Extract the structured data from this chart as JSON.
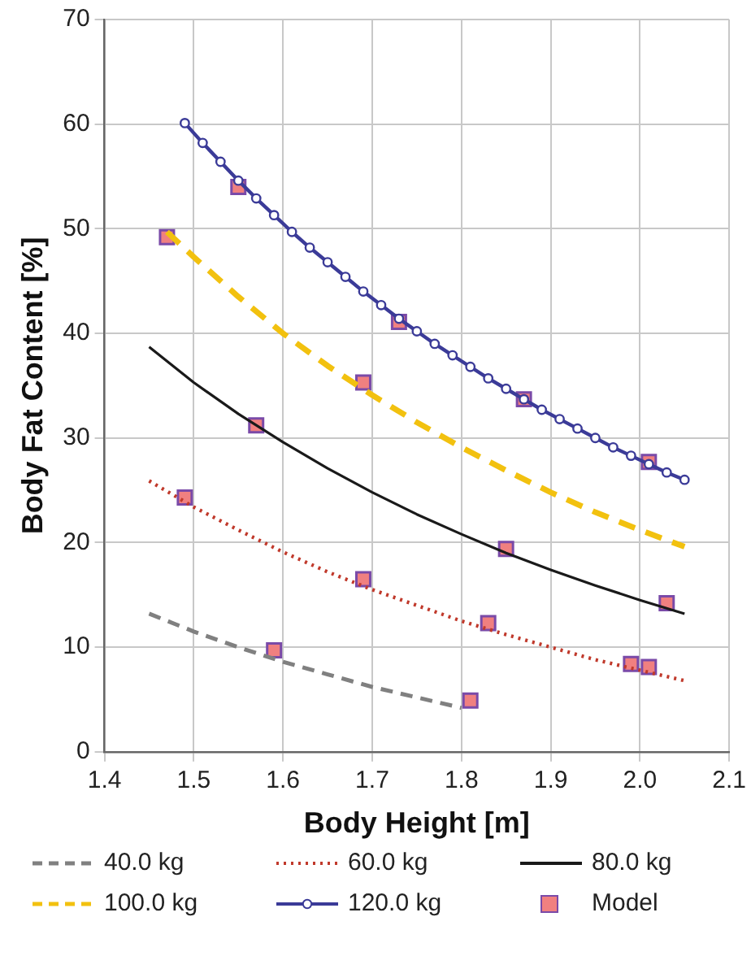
{
  "chart_data": {
    "type": "line",
    "xlabel": "Body Height [m]",
    "ylabel": "Body Fat Content [%]",
    "xlim": [
      1.4,
      2.1
    ],
    "xticks": [
      {
        "value": 1.4,
        "label": "1.4"
      },
      {
        "value": 1.5,
        "label": "1.5"
      },
      {
        "value": 1.6,
        "label": "1.6"
      },
      {
        "value": 1.7,
        "label": "1.7"
      },
      {
        "value": 1.8,
        "label": "1.8"
      },
      {
        "value": 1.9,
        "label": "1.9"
      },
      {
        "value": 2.0,
        "label": "2.0"
      },
      {
        "value": 2.1,
        "label": "2.1"
      }
    ],
    "ylim": [
      0,
      70
    ],
    "yticks": [
      0,
      10,
      20,
      30,
      40,
      50,
      60,
      70
    ],
    "grid": true,
    "legend": "bottom",
    "series": [
      {
        "name": "40.0 kg",
        "color": "#808080",
        "line_style": "dashed",
        "marker": "none",
        "x": [
          1.45,
          1.5,
          1.55,
          1.6,
          1.65,
          1.7,
          1.75,
          1.8
        ],
        "values": [
          13.2,
          11.5,
          10.0,
          8.6,
          7.4,
          6.2,
          5.2,
          4.2
        ]
      },
      {
        "name": "60.0 kg",
        "color": "#c0392b",
        "line_style": "dotted",
        "marker": "none",
        "x": [
          1.45,
          1.5,
          1.55,
          1.6,
          1.65,
          1.7,
          1.75,
          1.8,
          1.85,
          1.9,
          1.95,
          2.0,
          2.05
        ],
        "values": [
          25.9,
          23.4,
          21.2,
          19.1,
          17.2,
          15.5,
          14.0,
          12.5,
          11.2,
          10.0,
          8.8,
          7.8,
          6.8
        ]
      },
      {
        "name": "80.0 kg",
        "color": "#1a1a1a",
        "line_style": "solid",
        "marker": "none",
        "x": [
          1.45,
          1.5,
          1.55,
          1.6,
          1.65,
          1.7,
          1.75,
          1.8,
          1.85,
          1.9,
          1.95,
          2.0,
          2.05
        ],
        "values": [
          38.7,
          35.3,
          32.3,
          29.6,
          27.1,
          24.8,
          22.7,
          20.8,
          19.0,
          17.4,
          15.9,
          14.5,
          13.2
        ]
      },
      {
        "name": "100.0 kg",
        "color": "#f2c10f",
        "line_style": "dashed",
        "marker": "none",
        "x": [
          1.47,
          1.5,
          1.55,
          1.6,
          1.65,
          1.7,
          1.75,
          1.8,
          1.85,
          1.9,
          1.95,
          2.0,
          2.05
        ],
        "values": [
          49.7,
          47.3,
          43.5,
          40.0,
          36.9,
          34.1,
          31.5,
          29.1,
          26.9,
          24.8,
          22.9,
          21.2,
          19.6
        ]
      },
      {
        "name": "120.0 kg",
        "color": "#3b3b98",
        "line_style": "solid",
        "marker": "circle",
        "x": [
          1.49,
          1.51,
          1.53,
          1.55,
          1.57,
          1.59,
          1.61,
          1.63,
          1.65,
          1.67,
          1.69,
          1.71,
          1.73,
          1.75,
          1.77,
          1.79,
          1.81,
          1.83,
          1.85,
          1.87,
          1.89,
          1.91,
          1.93,
          1.95,
          1.97,
          1.99,
          2.01,
          2.03,
          2.05
        ],
        "values": [
          60.1,
          58.2,
          56.4,
          54.6,
          52.9,
          51.3,
          49.7,
          48.2,
          46.8,
          45.4,
          44.0,
          42.7,
          41.4,
          40.2,
          39.0,
          37.9,
          36.8,
          35.7,
          34.7,
          33.7,
          32.7,
          31.8,
          30.9,
          30.0,
          29.1,
          28.3,
          27.5,
          26.7,
          26.0
        ]
      },
      {
        "name": "Model",
        "type": "scatter",
        "color": "#f08080",
        "marker": "square",
        "x": [
          1.47,
          1.55,
          1.73,
          1.69,
          1.57,
          1.87,
          2.01,
          1.49,
          1.69,
          1.85,
          2.03,
          1.59,
          1.83,
          1.99,
          2.01,
          1.81
        ],
        "values": [
          49.2,
          54.0,
          41.1,
          35.3,
          31.2,
          33.7,
          27.7,
          24.3,
          16.5,
          19.4,
          14.2,
          9.7,
          12.3,
          8.4,
          8.1,
          4.9
        ]
      }
    ]
  }
}
